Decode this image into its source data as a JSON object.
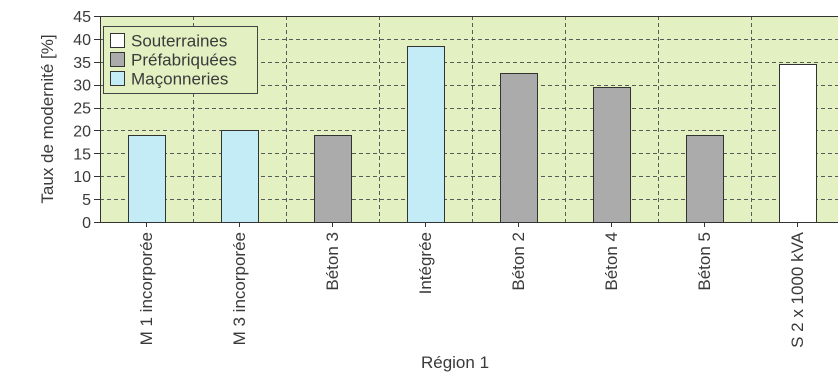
{
  "chart_data": {
    "type": "bar",
    "xlabel": "Région 1",
    "ylabel": "Taux de modernité [%]",
    "ylim": [
      0,
      45
    ],
    "yticks": [
      0,
      5,
      10,
      15,
      20,
      25,
      30,
      35,
      40,
      45
    ],
    "categories": [
      "M 1 incorporée",
      "M 3 incorporée",
      "Béton 3",
      "Intégrée",
      "Béton 2",
      "Béton 4",
      "Béton 5",
      "S 2 x 1000 kVA"
    ],
    "series": [
      {
        "name": "Souterraines",
        "color": "#ffffff",
        "values": [
          null,
          null,
          null,
          null,
          null,
          null,
          null,
          34.5
        ]
      },
      {
        "name": "Préfabriquées",
        "color": "#ababab",
        "values": [
          null,
          null,
          19,
          null,
          32.5,
          29.5,
          19,
          null
        ]
      },
      {
        "name": "Maçonneries",
        "color": "#c3ecf6",
        "values": [
          19,
          20,
          null,
          38.5,
          null,
          null,
          null,
          null
        ]
      }
    ],
    "grid": true,
    "legend": "top-left",
    "plot_background": "#e3f1c2"
  }
}
